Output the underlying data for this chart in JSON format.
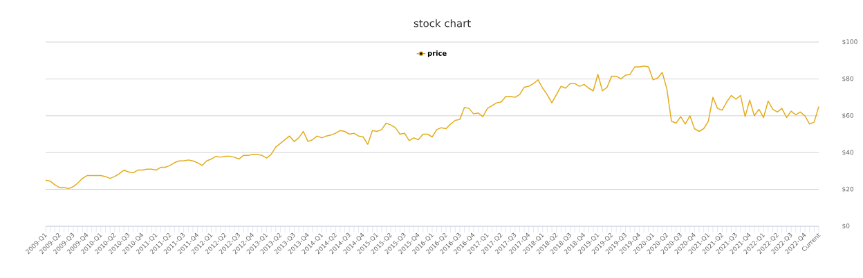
{
  "chart_data": {
    "type": "line",
    "title": "stock chart",
    "categories": [
      "2009-Q1",
      null,
      null,
      "2009-Q2",
      null,
      null,
      "2009-Q3",
      null,
      null,
      "2009-Q4",
      null,
      null,
      "2010-Q1",
      null,
      null,
      "2010-Q2",
      null,
      null,
      "2010-Q3",
      null,
      null,
      "2010-Q4",
      null,
      null,
      "2011-Q1",
      null,
      null,
      "2011-Q2",
      null,
      null,
      "2011-Q3",
      null,
      null,
      "2011-Q4",
      null,
      null,
      "2012-Q1",
      null,
      null,
      "2012-Q2",
      null,
      null,
      "2012-Q3",
      null,
      null,
      "2012-Q4",
      null,
      null,
      "2013-Q1",
      null,
      null,
      "2013-Q2",
      null,
      null,
      "2013-Q3",
      null,
      null,
      "2013-Q4",
      null,
      null,
      "2014-Q1",
      null,
      null,
      "2014-Q2",
      null,
      null,
      "2014-Q3",
      null,
      null,
      "2014-Q4",
      null,
      null,
      "2015-Q1",
      null,
      null,
      "2015-Q2",
      null,
      null,
      "2015-Q3",
      null,
      null,
      "2015-Q4",
      null,
      null,
      "2016-Q1",
      null,
      null,
      "2016-Q2",
      null,
      null,
      "2016-Q3",
      null,
      null,
      "2016-Q4",
      null,
      null,
      "2017-Q1",
      null,
      null,
      "2017-Q2",
      null,
      null,
      "2017-Q3",
      null,
      null,
      "2017-Q4",
      null,
      null,
      "2018-Q1",
      null,
      null,
      "2018-Q2",
      null,
      null,
      "2018-Q3",
      null,
      null,
      "2018-Q4",
      null,
      null,
      "2019-Q1",
      null,
      null,
      "2019-Q2",
      null,
      null,
      "2019-Q3",
      null,
      null,
      "2019-Q4",
      null,
      null,
      "2020-Q1",
      null,
      null,
      "2020-Q2",
      null,
      null,
      "2020-Q3",
      null,
      null,
      "2020-Q4",
      null,
      null,
      "2021-Q1",
      null,
      null,
      "2021-Q2",
      null,
      null,
      "2021-Q3",
      null,
      null,
      "2021-Q4",
      null,
      null,
      "2022-Q1",
      null,
      null,
      "2022-Q2",
      null,
      null,
      "2022-Q3",
      null,
      null,
      "2022-Q4",
      null,
      null,
      "Current"
    ],
    "series": [
      {
        "name": "price",
        "color": "#e3ac1c",
        "values": [
          25,
          24.5,
          22.5,
          21,
          21,
          20.5,
          21.5,
          23.5,
          26,
          27.5,
          27.5,
          27.5,
          27.5,
          27,
          26,
          27,
          28.5,
          30.5,
          29.5,
          29,
          30.5,
          30.5,
          31,
          31,
          30.5,
          32,
          32,
          33,
          34.5,
          35.5,
          35.5,
          36,
          35.5,
          34.5,
          33,
          35.5,
          36.5,
          38,
          37.5,
          38,
          38,
          37.5,
          36.5,
          38.5,
          38.5,
          39,
          39,
          38.5,
          37,
          39,
          43,
          45,
          47,
          49,
          46,
          48,
          51.5,
          46,
          47,
          49,
          48,
          49,
          49.5,
          50.5,
          52,
          51.5,
          50,
          50.5,
          49,
          48.5,
          44.5,
          52,
          51.5,
          52.5,
          56,
          55,
          53.5,
          50,
          50.5,
          46.5,
          48,
          47,
          50,
          50,
          48.5,
          52.5,
          53.5,
          53,
          55.5,
          57.5,
          58,
          64.5,
          64,
          61,
          61.5,
          59.5,
          64,
          65.5,
          67,
          67.5,
          70.5,
          70.5,
          70,
          71.5,
          75.5,
          76,
          77.5,
          79.5,
          75,
          71.5,
          67,
          71.5,
          76,
          75,
          77.5,
          77.5,
          76,
          77,
          75,
          73.5,
          82.5,
          73.5,
          75.5,
          81.5,
          81.5,
          80,
          82,
          82.5,
          86.5,
          86.5,
          87,
          86.5,
          79.5,
          80.5,
          83.5,
          74.5,
          57,
          56,
          59.5,
          55.5,
          60,
          53,
          51.5,
          53,
          57,
          70,
          64,
          63,
          67.5,
          71,
          69,
          71,
          59.5,
          68.5,
          60,
          63.5,
          59,
          68,
          63.5,
          62,
          64,
          59,
          62.5,
          60.5,
          62,
          60,
          55.5,
          56.5,
          65
        ]
      }
    ],
    "ylim": [
      0,
      100
    ],
    "yticks": [
      {
        "value": 0,
        "label": "$0"
      },
      {
        "value": 20,
        "label": "$20"
      },
      {
        "value": 40,
        "label": "$40"
      },
      {
        "value": 60,
        "label": "$60"
      },
      {
        "value": 80,
        "label": "$80"
      },
      {
        "value": 100,
        "label": "$100"
      }
    ],
    "grid": "y",
    "legend": "top",
    "marker": "none",
    "line_style": "solid"
  }
}
